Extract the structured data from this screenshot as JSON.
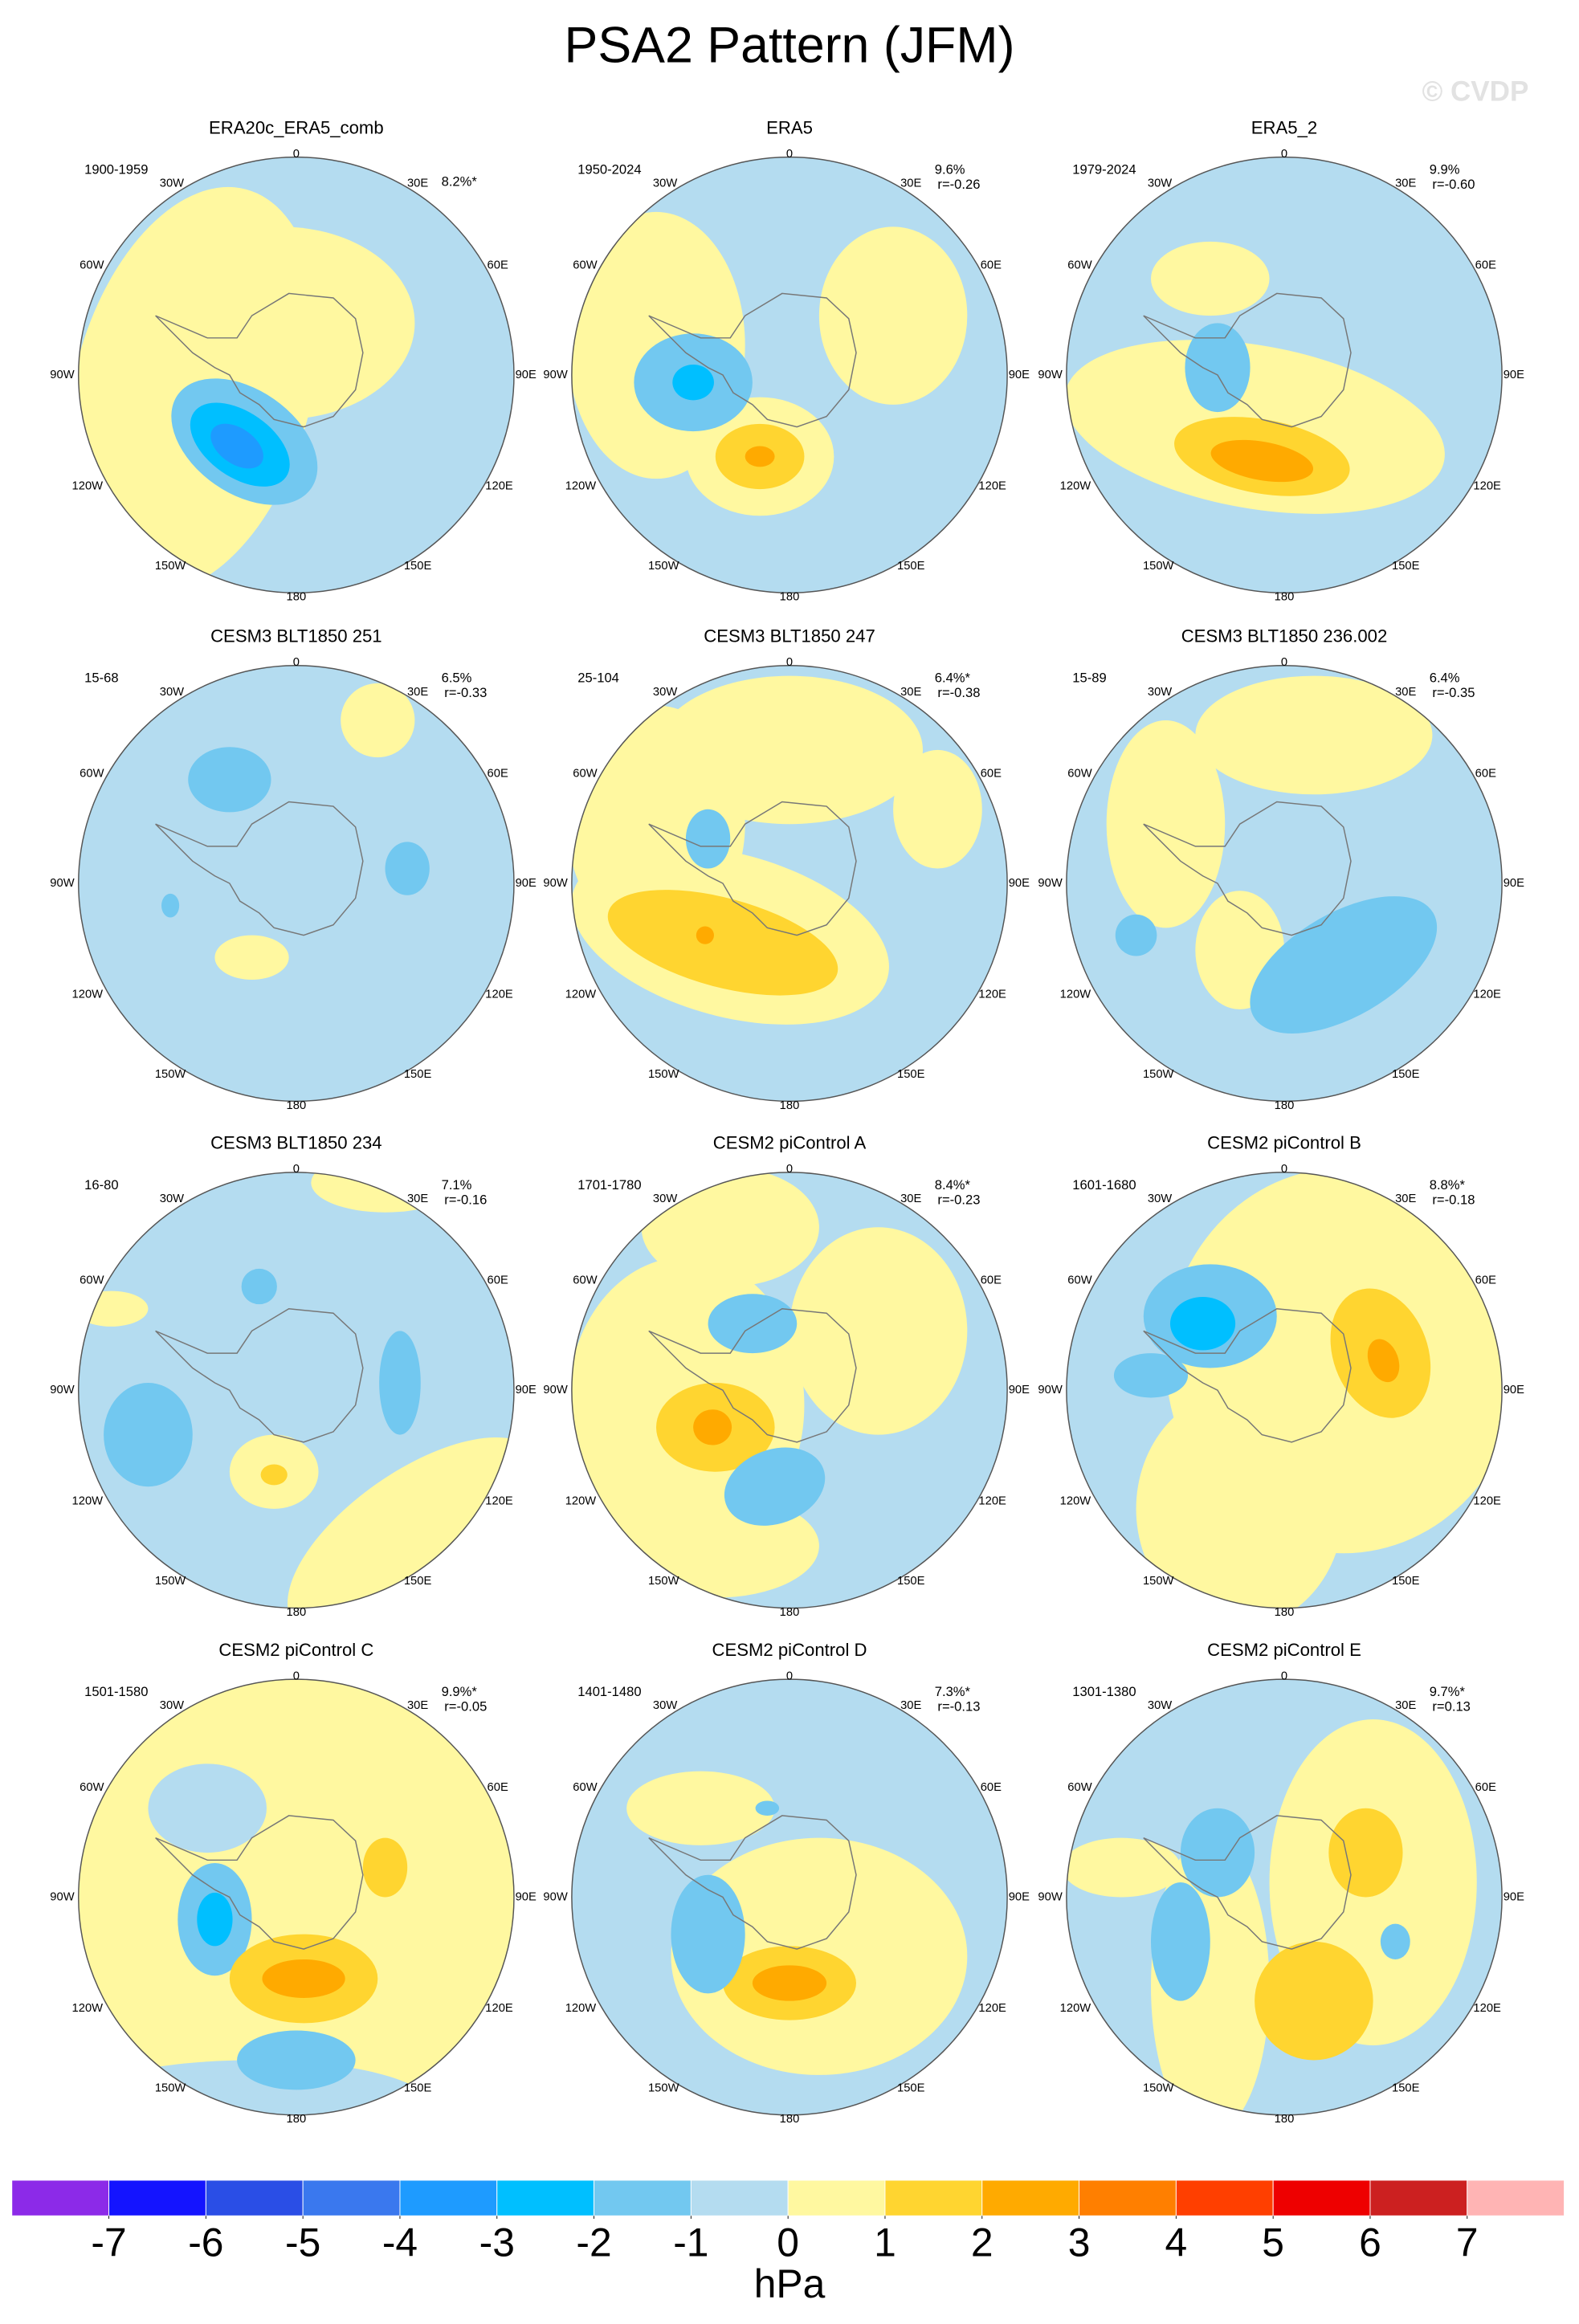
{
  "chart_data": {
    "type": "contour-map",
    "title": "PSA2 Pattern (JFM)",
    "watermark": "© CVDP",
    "lon_labels": [
      "0",
      "30E",
      "60E",
      "90E",
      "120E",
      "150E",
      "180",
      "150W",
      "120W",
      "90W",
      "60W",
      "30W"
    ],
    "panels": [
      {
        "title": "ERA20c_ERA5_comb",
        "period": "1900-1959",
        "pct": "8.2%*"
      },
      {
        "title": "ERA5",
        "period": "1950-2024",
        "pct": "9.6%",
        "r": "r=-0.26"
      },
      {
        "title": "ERA5_2",
        "period": "1979-2024",
        "pct": "9.9%",
        "r": "r=-0.60"
      },
      {
        "title": "CESM3 BLT1850 251",
        "period": "15-68",
        "pct": "6.5%",
        "r": "r=-0.33"
      },
      {
        "title": "CESM3 BLT1850 247",
        "period": "25-104",
        "pct": "6.4%*",
        "r": "r=-0.38"
      },
      {
        "title": "CESM3 BLT1850 236.002",
        "period": "15-89",
        "pct": "6.4%",
        "r": "r=-0.35"
      },
      {
        "title": "CESM3 BLT1850 234",
        "period": "16-80",
        "pct": "7.1%",
        "r": "r=-0.16"
      },
      {
        "title": "CESM2 piControl A",
        "period": "1701-1780",
        "pct": "8.4%*",
        "r": "r=-0.23"
      },
      {
        "title": "CESM2 piControl B",
        "period": "1601-1680",
        "pct": "8.8%*",
        "r": "r=-0.18"
      },
      {
        "title": "CESM2 piControl C",
        "period": "1501-1580",
        "pct": "9.9%*",
        "r": "r=-0.05"
      },
      {
        "title": "CESM2 piControl D",
        "period": "1401-1480",
        "pct": "7.3%*",
        "r": "r=-0.13"
      },
      {
        "title": "CESM2 piControl E",
        "period": "1301-1380",
        "pct": "9.7%*",
        "r": "r=0.13"
      }
    ],
    "colorbar": {
      "label": "hPa",
      "levels": [
        -7,
        -6,
        -5,
        -4,
        -3,
        -2,
        -1,
        0,
        1,
        2,
        3,
        4,
        5,
        6,
        7
      ],
      "colors": [
        "#8c2ae8",
        "#1414ff",
        "#2a4ee6",
        "#3a78ee",
        "#1e9bff",
        "#00bfff",
        "#72c8f0",
        "#b4dcf0",
        "#fff8a0",
        "#ffd530",
        "#ffaa00",
        "#ff7f00",
        "#ff3f00",
        "#ee0000",
        "#cc2020",
        "#ffb4b4"
      ]
    }
  }
}
